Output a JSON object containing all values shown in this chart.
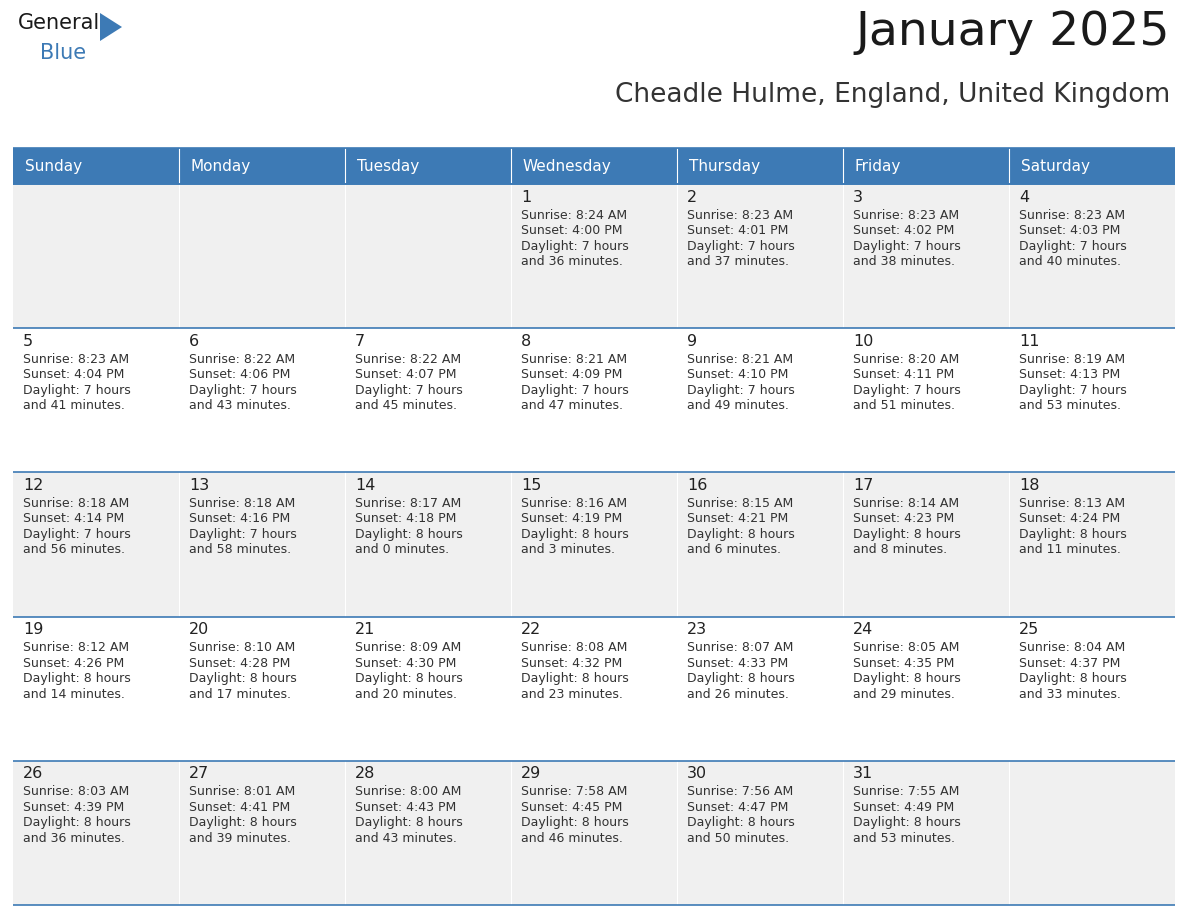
{
  "title": "January 2025",
  "subtitle": "Cheadle Hulme, England, United Kingdom",
  "header_bg_color": "#3d7ab5",
  "header_text_color": "#ffffff",
  "cell_bg_odd": "#f0f0f0",
  "cell_bg_even": "#ffffff",
  "text_color": "#333333",
  "day_number_color": "#222222",
  "border_color": "#3d7ab5",
  "days_of_week": [
    "Sunday",
    "Monday",
    "Tuesday",
    "Wednesday",
    "Thursday",
    "Friday",
    "Saturday"
  ],
  "calendar_data": [
    [
      {
        "day": "",
        "sunrise": "",
        "sunset": "",
        "daylight": ""
      },
      {
        "day": "",
        "sunrise": "",
        "sunset": "",
        "daylight": ""
      },
      {
        "day": "",
        "sunrise": "",
        "sunset": "",
        "daylight": ""
      },
      {
        "day": "1",
        "sunrise": "8:24 AM",
        "sunset": "4:00 PM",
        "daylight": "7 hours\nand 36 minutes."
      },
      {
        "day": "2",
        "sunrise": "8:23 AM",
        "sunset": "4:01 PM",
        "daylight": "7 hours\nand 37 minutes."
      },
      {
        "day": "3",
        "sunrise": "8:23 AM",
        "sunset": "4:02 PM",
        "daylight": "7 hours\nand 38 minutes."
      },
      {
        "day": "4",
        "sunrise": "8:23 AM",
        "sunset": "4:03 PM",
        "daylight": "7 hours\nand 40 minutes."
      }
    ],
    [
      {
        "day": "5",
        "sunrise": "8:23 AM",
        "sunset": "4:04 PM",
        "daylight": "7 hours\nand 41 minutes."
      },
      {
        "day": "6",
        "sunrise": "8:22 AM",
        "sunset": "4:06 PM",
        "daylight": "7 hours\nand 43 minutes."
      },
      {
        "day": "7",
        "sunrise": "8:22 AM",
        "sunset": "4:07 PM",
        "daylight": "7 hours\nand 45 minutes."
      },
      {
        "day": "8",
        "sunrise": "8:21 AM",
        "sunset": "4:09 PM",
        "daylight": "7 hours\nand 47 minutes."
      },
      {
        "day": "9",
        "sunrise": "8:21 AM",
        "sunset": "4:10 PM",
        "daylight": "7 hours\nand 49 minutes."
      },
      {
        "day": "10",
        "sunrise": "8:20 AM",
        "sunset": "4:11 PM",
        "daylight": "7 hours\nand 51 minutes."
      },
      {
        "day": "11",
        "sunrise": "8:19 AM",
        "sunset": "4:13 PM",
        "daylight": "7 hours\nand 53 minutes."
      }
    ],
    [
      {
        "day": "12",
        "sunrise": "8:18 AM",
        "sunset": "4:14 PM",
        "daylight": "7 hours\nand 56 minutes."
      },
      {
        "day": "13",
        "sunrise": "8:18 AM",
        "sunset": "4:16 PM",
        "daylight": "7 hours\nand 58 minutes."
      },
      {
        "day": "14",
        "sunrise": "8:17 AM",
        "sunset": "4:18 PM",
        "daylight": "8 hours\nand 0 minutes."
      },
      {
        "day": "15",
        "sunrise": "8:16 AM",
        "sunset": "4:19 PM",
        "daylight": "8 hours\nand 3 minutes."
      },
      {
        "day": "16",
        "sunrise": "8:15 AM",
        "sunset": "4:21 PM",
        "daylight": "8 hours\nand 6 minutes."
      },
      {
        "day": "17",
        "sunrise": "8:14 AM",
        "sunset": "4:23 PM",
        "daylight": "8 hours\nand 8 minutes."
      },
      {
        "day": "18",
        "sunrise": "8:13 AM",
        "sunset": "4:24 PM",
        "daylight": "8 hours\nand 11 minutes."
      }
    ],
    [
      {
        "day": "19",
        "sunrise": "8:12 AM",
        "sunset": "4:26 PM",
        "daylight": "8 hours\nand 14 minutes."
      },
      {
        "day": "20",
        "sunrise": "8:10 AM",
        "sunset": "4:28 PM",
        "daylight": "8 hours\nand 17 minutes."
      },
      {
        "day": "21",
        "sunrise": "8:09 AM",
        "sunset": "4:30 PM",
        "daylight": "8 hours\nand 20 minutes."
      },
      {
        "day": "22",
        "sunrise": "8:08 AM",
        "sunset": "4:32 PM",
        "daylight": "8 hours\nand 23 minutes."
      },
      {
        "day": "23",
        "sunrise": "8:07 AM",
        "sunset": "4:33 PM",
        "daylight": "8 hours\nand 26 minutes."
      },
      {
        "day": "24",
        "sunrise": "8:05 AM",
        "sunset": "4:35 PM",
        "daylight": "8 hours\nand 29 minutes."
      },
      {
        "day": "25",
        "sunrise": "8:04 AM",
        "sunset": "4:37 PM",
        "daylight": "8 hours\nand 33 minutes."
      }
    ],
    [
      {
        "day": "26",
        "sunrise": "8:03 AM",
        "sunset": "4:39 PM",
        "daylight": "8 hours\nand 36 minutes."
      },
      {
        "day": "27",
        "sunrise": "8:01 AM",
        "sunset": "4:41 PM",
        "daylight": "8 hours\nand 39 minutes."
      },
      {
        "day": "28",
        "sunrise": "8:00 AM",
        "sunset": "4:43 PM",
        "daylight": "8 hours\nand 43 minutes."
      },
      {
        "day": "29",
        "sunrise": "7:58 AM",
        "sunset": "4:45 PM",
        "daylight": "8 hours\nand 46 minutes."
      },
      {
        "day": "30",
        "sunrise": "7:56 AM",
        "sunset": "4:47 PM",
        "daylight": "8 hours\nand 50 minutes."
      },
      {
        "day": "31",
        "sunrise": "7:55 AM",
        "sunset": "4:49 PM",
        "daylight": "8 hours\nand 53 minutes."
      },
      {
        "day": "",
        "sunrise": "",
        "sunset": "",
        "daylight": ""
      }
    ]
  ]
}
